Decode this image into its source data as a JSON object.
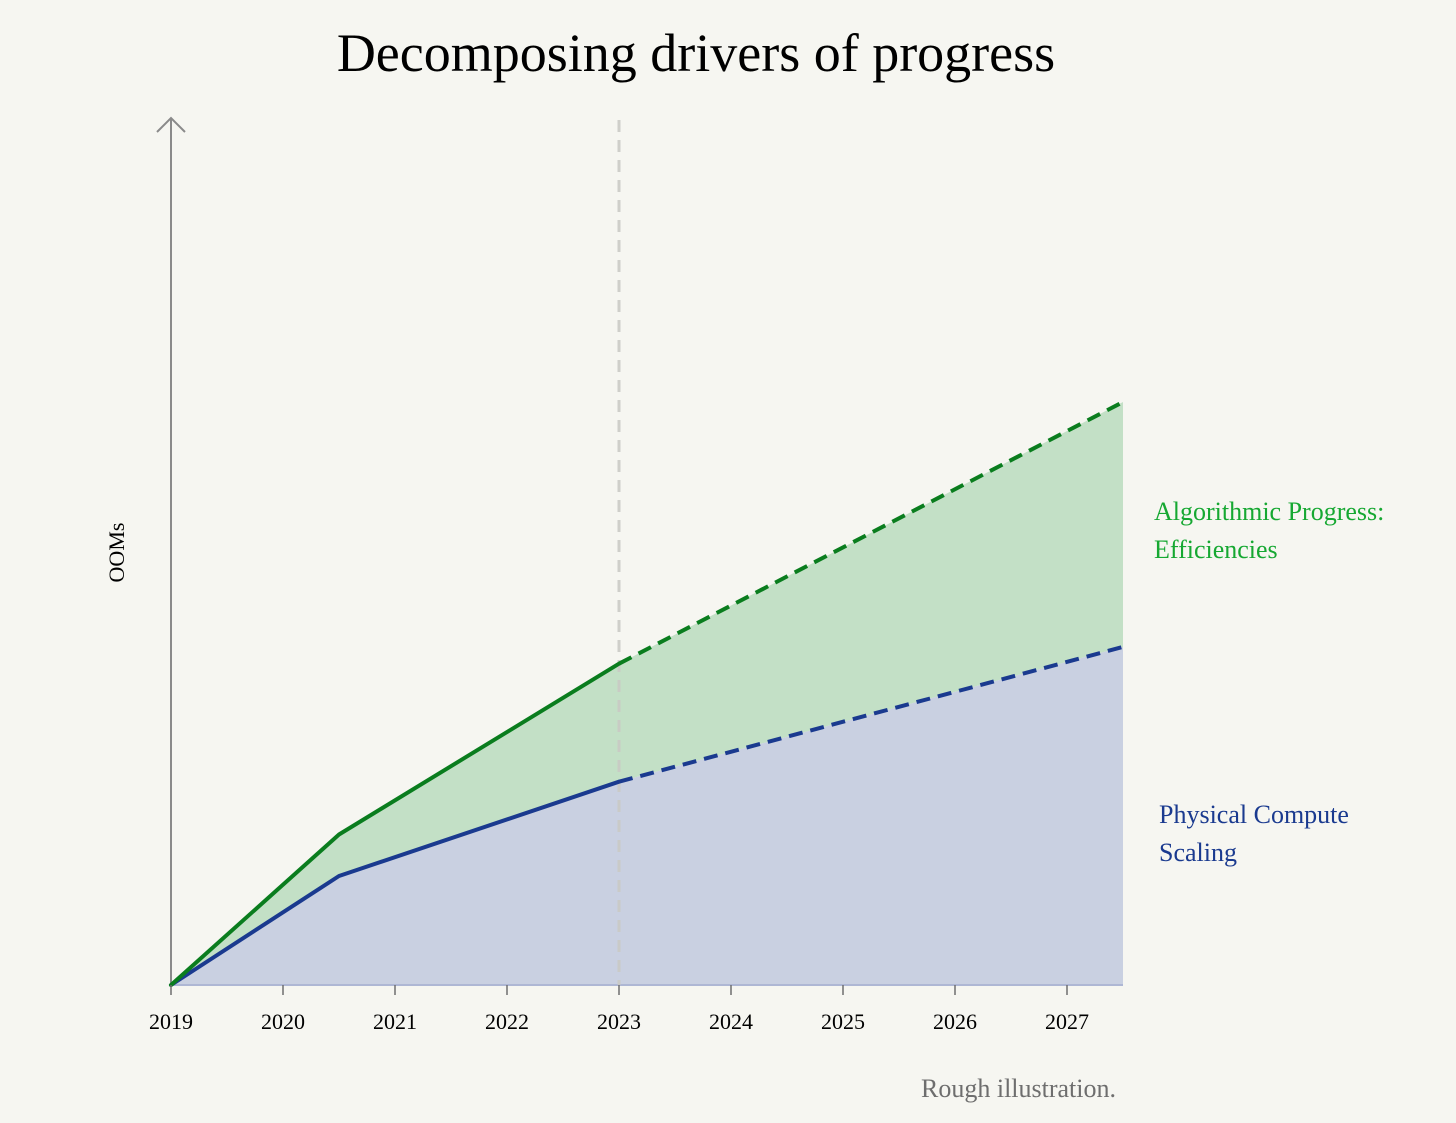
{
  "chart_data": {
    "type": "area",
    "title": "Decomposing drivers of progress",
    "ylabel": "OOMs",
    "xlabel": "",
    "xlim": [
      2019,
      2027.5
    ],
    "ylim": [
      0,
      7.7
    ],
    "x_ticks": [
      2019,
      2020,
      2021,
      2022,
      2023,
      2024,
      2025,
      2026,
      2027
    ],
    "projection_start": 2023,
    "series": [
      {
        "name": "Physical Compute Scaling",
        "label_lines": [
          "Physical Compute",
          "Scaling"
        ],
        "color": "#1a3a8f",
        "fill": "#c9d0e1",
        "actual": [
          [
            2019,
            0
          ],
          [
            2020.5,
            0.97
          ],
          [
            2023,
            1.81
          ]
        ],
        "projected": [
          [
            2023,
            1.81
          ],
          [
            2027.5,
            3.01
          ]
        ]
      },
      {
        "name": "Algorithmic Progress: Efficiencies",
        "label_lines": [
          "Algorithmic Progress:",
          "Efficiencies"
        ],
        "color": "#0a7d1e",
        "label_color": "#16a832",
        "fill": "#c3e0c6",
        "actual": [
          [
            2019,
            0
          ],
          [
            2020.5,
            1.34
          ],
          [
            2023,
            2.86
          ]
        ],
        "projected": [
          [
            2023,
            2.86
          ],
          [
            2027.5,
            5.19
          ]
        ]
      }
    ],
    "caption": "Rough illustration."
  }
}
